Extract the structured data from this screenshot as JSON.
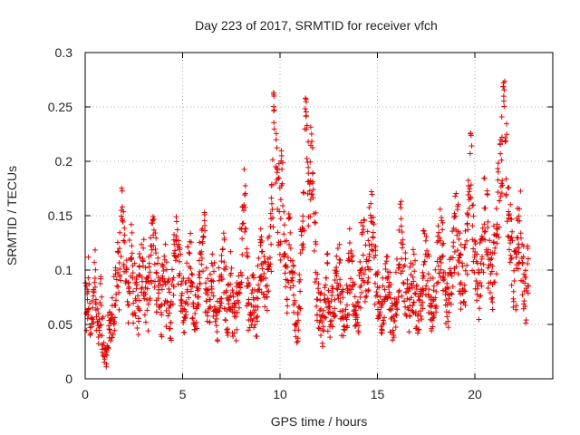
{
  "chart_data": {
    "type": "scatter",
    "title": "Day 223 of 2017, SRMTID for receiver vfch",
    "xlabel": "GPS time / hours",
    "ylabel": "SRMTID / TECUs",
    "xlim": [
      0,
      24
    ],
    "ylim": [
      0,
      0.3
    ],
    "x_ticks": [
      "0",
      "5",
      "10",
      "15",
      "20"
    ],
    "y_ticks": [
      "0",
      "0.05",
      "0.1",
      "0.15",
      "0.2",
      "0.25",
      "0.3"
    ],
    "grid": true,
    "marker": "+",
    "color": "#e00000",
    "series": [
      {
        "name": "vfch",
        "x": [
          0.0,
          0.1,
          0.2,
          0.3,
          0.4,
          0.5,
          0.6,
          0.7,
          0.8,
          0.9,
          1.0,
          1.1,
          1.2,
          1.3,
          1.4,
          1.5,
          1.6,
          1.7,
          1.8,
          1.9,
          2.0,
          2.1,
          2.2,
          2.3,
          2.4,
          2.5,
          2.6,
          2.7,
          2.8,
          2.9,
          3.0,
          3.1,
          3.2,
          3.3,
          3.4,
          3.5,
          3.6,
          3.7,
          3.8,
          3.9,
          4.0,
          4.1,
          4.2,
          4.3,
          4.4,
          4.5,
          4.6,
          4.7,
          4.8,
          4.9,
          5.0,
          5.1,
          5.2,
          5.3,
          5.4,
          5.5,
          5.6,
          5.7,
          5.8,
          5.9,
          6.0,
          6.1,
          6.2,
          6.3,
          6.4,
          6.5,
          6.6,
          6.7,
          6.8,
          6.9,
          7.0,
          7.1,
          7.2,
          7.3,
          7.4,
          7.5,
          7.6,
          7.7,
          7.8,
          7.9,
          8.0,
          8.1,
          8.2,
          8.3,
          8.4,
          8.5,
          8.6,
          8.7,
          8.8,
          8.9,
          9.0,
          9.1,
          9.2,
          9.3,
          9.4,
          9.5,
          9.6,
          9.7,
          9.8,
          9.9,
          10.0,
          10.1,
          10.2,
          10.3,
          10.4,
          10.5,
          10.6,
          10.7,
          10.8,
          10.9,
          11.0,
          11.1,
          11.2,
          11.3,
          11.4,
          11.5,
          11.6,
          11.7,
          11.8,
          11.9,
          12.0,
          12.1,
          12.2,
          12.3,
          12.4,
          12.5,
          12.6,
          12.7,
          12.8,
          12.9,
          13.0,
          13.1,
          13.2,
          13.3,
          13.4,
          13.5,
          13.6,
          13.7,
          13.8,
          13.9,
          14.0,
          14.1,
          14.2,
          14.3,
          14.4,
          14.5,
          14.6,
          14.7,
          14.8,
          14.9,
          15.0,
          15.1,
          15.2,
          15.3,
          15.4,
          15.5,
          15.6,
          15.7,
          15.8,
          15.9,
          16.0,
          16.1,
          16.2,
          16.3,
          16.4,
          16.5,
          16.6,
          16.7,
          16.8,
          16.9,
          17.0,
          17.1,
          17.2,
          17.3,
          17.4,
          17.5,
          17.6,
          17.7,
          17.8,
          17.9,
          18.0,
          18.1,
          18.2,
          18.3,
          18.4,
          18.5,
          18.6,
          18.7,
          18.8,
          18.9,
          19.0,
          19.1,
          19.2,
          19.3,
          19.4,
          19.5,
          19.6,
          19.7,
          19.8,
          19.9,
          20.0,
          20.1,
          20.2,
          20.3,
          20.4,
          20.5,
          20.6,
          20.7,
          20.8,
          20.9,
          21.0,
          21.1,
          21.2,
          21.3,
          21.4,
          21.5,
          21.6,
          21.7,
          21.8,
          21.9,
          22.0,
          22.1,
          22.2,
          22.3,
          22.4,
          22.5,
          22.6,
          22.7
        ],
        "y": [
          0.075,
          0.062,
          0.082,
          0.055,
          0.068,
          0.091,
          0.058,
          0.049,
          0.072,
          0.038,
          0.028,
          0.021,
          0.045,
          0.052,
          0.061,
          0.071,
          0.084,
          0.096,
          0.11,
          0.162,
          0.128,
          0.091,
          0.078,
          0.102,
          0.115,
          0.08,
          0.071,
          0.062,
          0.088,
          0.095,
          0.103,
          0.082,
          0.069,
          0.091,
          0.115,
          0.142,
          0.106,
          0.088,
          0.072,
          0.061,
          0.085,
          0.094,
          0.078,
          0.067,
          0.055,
          0.089,
          0.124,
          0.131,
          0.108,
          0.092,
          0.074,
          0.066,
          0.081,
          0.097,
          0.109,
          0.072,
          0.058,
          0.064,
          0.083,
          0.102,
          0.116,
          0.145,
          0.087,
          0.068,
          0.073,
          0.091,
          0.082,
          0.061,
          0.054,
          0.078,
          0.096,
          0.105,
          0.079,
          0.063,
          0.072,
          0.088,
          0.061,
          0.049,
          0.067,
          0.084,
          0.11,
          0.142,
          0.165,
          0.094,
          0.068,
          0.057,
          0.082,
          0.071,
          0.063,
          0.088,
          0.116,
          0.097,
          0.083,
          0.092,
          0.109,
          0.124,
          0.168,
          0.246,
          0.21,
          0.16,
          0.141,
          0.184,
          0.132,
          0.104,
          0.088,
          0.117,
          0.095,
          0.079,
          0.063,
          0.058,
          0.092,
          0.12,
          0.145,
          0.241,
          0.205,
          0.168,
          0.198,
          0.176,
          0.122,
          0.081,
          0.068,
          0.059,
          0.049,
          0.071,
          0.088,
          0.064,
          0.055,
          0.061,
          0.077,
          0.092,
          0.101,
          0.081,
          0.059,
          0.045,
          0.069,
          0.086,
          0.104,
          0.091,
          0.071,
          0.058,
          0.067,
          0.088,
          0.113,
          0.122,
          0.094,
          0.108,
          0.129,
          0.148,
          0.118,
          0.096,
          0.082,
          0.065,
          0.054,
          0.071,
          0.086,
          0.097,
          0.079,
          0.062,
          0.051,
          0.068,
          0.084,
          0.109,
          0.131,
          0.106,
          0.089,
          0.073,
          0.065,
          0.078,
          0.091,
          0.086,
          0.071,
          0.059,
          0.067,
          0.083,
          0.112,
          0.101,
          0.087,
          0.074,
          0.062,
          0.079,
          0.091,
          0.106,
          0.128,
          0.116,
          0.095,
          0.08,
          0.071,
          0.086,
          0.102,
          0.118,
          0.137,
          0.126,
          0.109,
          0.094,
          0.081,
          0.102,
          0.123,
          0.148,
          0.186,
          0.132,
          0.108,
          0.089,
          0.076,
          0.098,
          0.126,
          0.154,
          0.142,
          0.118,
          0.101,
          0.087,
          0.108,
          0.129,
          0.162,
          0.185,
          0.204,
          0.262,
          0.198,
          0.155,
          0.136,
          0.118,
          0.097,
          0.088,
          0.125,
          0.14,
          0.108,
          0.092,
          0.076,
          0.096
        ],
        "y_spread": [
          0.02,
          0.025,
          0.03,
          0.02,
          0.025,
          0.03,
          0.02,
          0.02,
          0.025,
          0.02,
          0.015,
          0.01,
          0.02,
          0.02,
          0.025,
          0.03,
          0.03,
          0.035,
          0.03,
          0.02,
          0.035,
          0.03,
          0.03,
          0.03,
          0.03,
          0.03,
          0.025,
          0.025,
          0.03,
          0.03,
          0.03,
          0.03,
          0.025,
          0.03,
          0.03,
          0.02,
          0.03,
          0.03,
          0.025,
          0.025,
          0.03,
          0.03,
          0.03,
          0.025,
          0.02,
          0.03,
          0.02,
          0.02,
          0.03,
          0.03,
          0.025,
          0.025,
          0.03,
          0.03,
          0.03,
          0.025,
          0.02,
          0.025,
          0.03,
          0.03,
          0.03,
          0.02,
          0.03,
          0.025,
          0.025,
          0.03,
          0.03,
          0.025,
          0.02,
          0.03,
          0.03,
          0.03,
          0.03,
          0.025,
          0.025,
          0.03,
          0.025,
          0.02,
          0.025,
          0.03,
          0.03,
          0.03,
          0.03,
          0.03,
          0.025,
          0.02,
          0.03,
          0.025,
          0.025,
          0.03,
          0.03,
          0.03,
          0.03,
          0.03,
          0.03,
          0.03,
          0.04,
          0.02,
          0.035,
          0.04,
          0.035,
          0.04,
          0.035,
          0.03,
          0.03,
          0.035,
          0.03,
          0.03,
          0.025,
          0.025,
          0.03,
          0.035,
          0.035,
          0.02,
          0.035,
          0.035,
          0.035,
          0.04,
          0.035,
          0.03,
          0.025,
          0.025,
          0.02,
          0.025,
          0.03,
          0.025,
          0.02,
          0.025,
          0.03,
          0.03,
          0.035,
          0.03,
          0.025,
          0.02,
          0.025,
          0.03,
          0.035,
          0.03,
          0.025,
          0.02,
          0.025,
          0.03,
          0.035,
          0.035,
          0.03,
          0.03,
          0.035,
          0.03,
          0.035,
          0.03,
          0.03,
          0.025,
          0.02,
          0.025,
          0.03,
          0.03,
          0.03,
          0.025,
          0.02,
          0.025,
          0.03,
          0.035,
          0.035,
          0.03,
          0.03,
          0.025,
          0.025,
          0.03,
          0.03,
          0.03,
          0.025,
          0.02,
          0.025,
          0.03,
          0.035,
          0.03,
          0.03,
          0.025,
          0.025,
          0.03,
          0.03,
          0.035,
          0.035,
          0.035,
          0.03,
          0.03,
          0.025,
          0.03,
          0.035,
          0.035,
          0.035,
          0.035,
          0.035,
          0.03,
          0.03,
          0.035,
          0.035,
          0.035,
          0.04,
          0.035,
          0.03,
          0.03,
          0.03,
          0.035,
          0.04,
          0.04,
          0.04,
          0.035,
          0.03,
          0.03,
          0.035,
          0.04,
          0.04,
          0.04,
          0.04,
          0.015,
          0.04,
          0.04,
          0.035,
          0.035,
          0.035,
          0.03,
          0.035,
          0.035,
          0.035,
          0.03,
          0.025,
          0.03
        ]
      }
    ]
  }
}
